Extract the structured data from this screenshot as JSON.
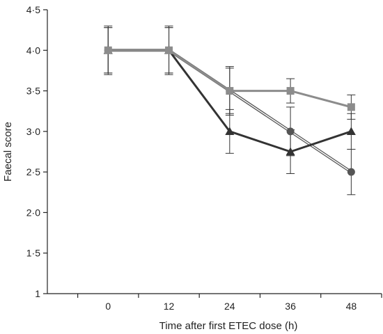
{
  "chart_data": {
    "type": "line",
    "xlabel": "Time after first ETEC dose (h)",
    "ylabel": "Faecal score",
    "x": [
      0,
      12,
      24,
      36,
      48
    ],
    "x_tick_labels": [
      "0",
      "12",
      "24",
      "36",
      "48"
    ],
    "y_tick_labels": [
      "1",
      "1·5",
      "2·0",
      "2·5",
      "3·0",
      "3·5",
      "4·0",
      "4·5"
    ],
    "y_ticks": [
      1,
      1.5,
      2.0,
      2.5,
      3.0,
      3.5,
      4.0,
      4.5
    ],
    "xlim": [
      -12,
      54
    ],
    "ylim": [
      1,
      4.5
    ],
    "grid": false,
    "series": [
      {
        "marker": "circle",
        "color": "#555555",
        "style": "double-line",
        "values": [
          4.0,
          4.0,
          3.5,
          3.0,
          2.5
        ],
        "errors": [
          0.28,
          0.28,
          0.28,
          0.3,
          0.28
        ]
      },
      {
        "marker": "triangle",
        "color": "#333333",
        "style": "solid",
        "values": [
          4.0,
          4.0,
          3.0,
          2.75,
          3.0
        ],
        "errors": [
          0.28,
          0.28,
          0.27,
          0.27,
          0.22
        ]
      },
      {
        "marker": "square",
        "color": "#8c8c8c",
        "style": "solid",
        "values": [
          4.0,
          4.0,
          3.5,
          3.5,
          3.3
        ],
        "errors": [
          0.3,
          0.3,
          0.3,
          0.15,
          0.15
        ]
      }
    ]
  }
}
